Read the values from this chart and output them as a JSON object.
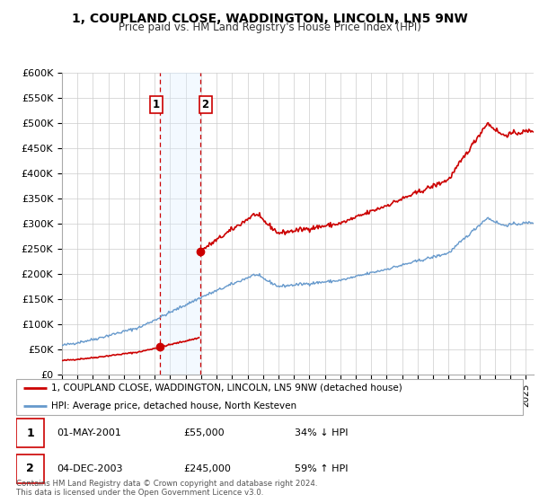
{
  "title": "1, COUPLAND CLOSE, WADDINGTON, LINCOLN, LN5 9NW",
  "subtitle": "Price paid vs. HM Land Registry's House Price Index (HPI)",
  "ylabel_ticks": [
    "£0",
    "£50K",
    "£100K",
    "£150K",
    "£200K",
    "£250K",
    "£300K",
    "£350K",
    "£400K",
    "£450K",
    "£500K",
    "£550K",
    "£600K"
  ],
  "ytick_values": [
    0,
    50000,
    100000,
    150000,
    200000,
    250000,
    300000,
    350000,
    400000,
    450000,
    500000,
    550000,
    600000
  ],
  "sale1_date": 2001.33,
  "sale1_price": 55000,
  "sale2_date": 2003.92,
  "sale2_price": 245000,
  "property_line_color": "#cc0000",
  "hpi_line_color": "#6699cc",
  "shaded_region_color": "#ddeeff",
  "dashed_line_color": "#cc0000",
  "legend_label_property": "1, COUPLAND CLOSE, WADDINGTON, LINCOLN, LN5 9NW (detached house)",
  "legend_label_hpi": "HPI: Average price, detached house, North Kesteven",
  "footnote": "Contains HM Land Registry data © Crown copyright and database right 2024.\nThis data is licensed under the Open Government Licence v3.0.",
  "xmin": 1995,
  "xmax": 2025.5,
  "ymin": 0,
  "ymax": 600000
}
